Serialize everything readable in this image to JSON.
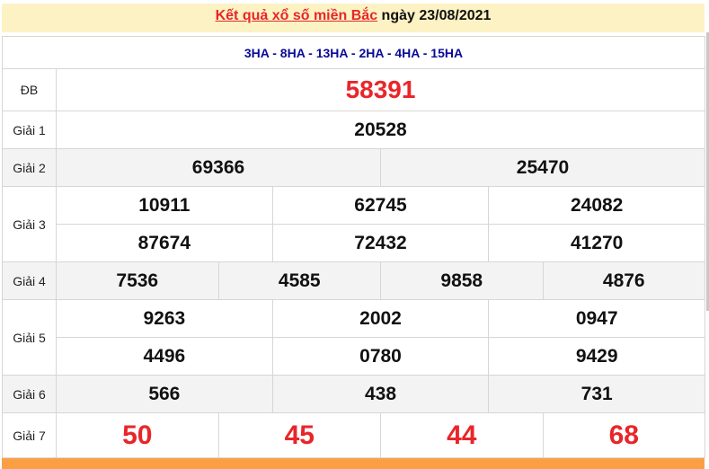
{
  "title": {
    "link_text": "Kết quả xổ số miền Bắc",
    "date_text": " ngày 23/08/2021"
  },
  "codes": "3HA - 8HA - 13HA - 2HA - 4HA - 15HA",
  "prizes": [
    {
      "label": "ĐB",
      "lines": [
        [
          "58391"
        ]
      ],
      "style": "db",
      "gray": false
    },
    {
      "label": "Giải 1",
      "lines": [
        [
          "20528"
        ]
      ],
      "gray": false
    },
    {
      "label": "Giải 2",
      "lines": [
        [
          "69366",
          "25470"
        ]
      ],
      "gray": true
    },
    {
      "label": "Giải 3",
      "lines": [
        [
          "10911",
          "62745",
          "24082"
        ],
        [
          "87674",
          "72432",
          "41270"
        ]
      ],
      "gray": false
    },
    {
      "label": "Giải 4",
      "lines": [
        [
          "7536",
          "4585",
          "9858",
          "4876"
        ]
      ],
      "gray": true
    },
    {
      "label": "Giải 5",
      "lines": [
        [
          "9263",
          "2002",
          "0947"
        ],
        [
          "4496",
          "0780",
          "9429"
        ]
      ],
      "gray": false
    },
    {
      "label": "Giải 6",
      "lines": [
        [
          "566",
          "438",
          "731"
        ]
      ],
      "gray": true
    },
    {
      "label": "Giải 7",
      "lines": [
        [
          "50",
          "45",
          "44",
          "68"
        ]
      ],
      "style": "g7",
      "gray": false
    }
  ],
  "colors": {
    "accent_red": "#e8262a",
    "code_blue": "#0a0a96",
    "header_bg": "#fcf2c4",
    "footer_orange": "#fb9f45"
  }
}
